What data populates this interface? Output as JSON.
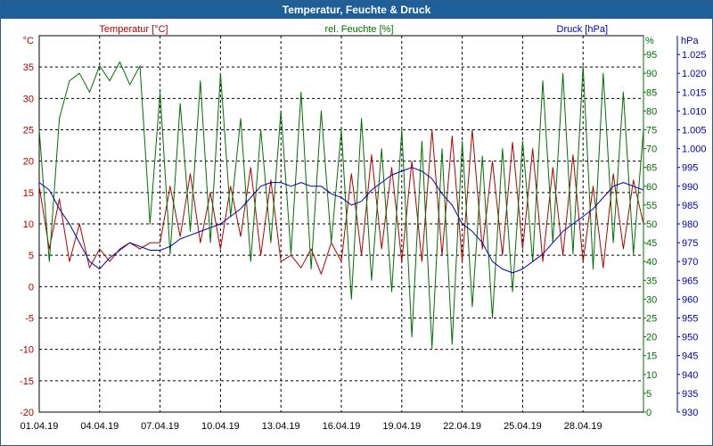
{
  "window": {
    "title": "Temperatur, Feuchte & Druck"
  },
  "colors": {
    "temperature": "#b00000",
    "humidity": "#007000",
    "pressure": "#0000b0",
    "grid": "#000000",
    "frame": "#1f5f99"
  },
  "chart_data": {
    "type": "line",
    "title": "Temperatur, Feuchte & Druck",
    "x_start": "2019-04-01",
    "x_end": "2019-05-01",
    "x_ticks": [
      "01.04.19",
      "04.04.19",
      "07.04.19",
      "10.04.19",
      "13.04.19",
      "16.04.19",
      "19.04.19",
      "22.04.19",
      "25.04.19",
      "28.04.19"
    ],
    "grid": true,
    "legend": "top",
    "axes": {
      "left": {
        "unit": "°C",
        "min": -20,
        "max": 40,
        "ticks": [
          -20,
          -15,
          -10,
          -5,
          0,
          5,
          10,
          15,
          20,
          25,
          30,
          35
        ]
      },
      "right1": {
        "unit": "%",
        "min": 0,
        "max": 100,
        "ticks": [
          0,
          5,
          10,
          15,
          20,
          25,
          30,
          35,
          40,
          45,
          50,
          55,
          60,
          65,
          70,
          75,
          80,
          85,
          90,
          95
        ]
      },
      "right2": {
        "unit": "hPa",
        "min": 930,
        "max": 1030,
        "ticks": [
          "930",
          "935",
          "940",
          "945",
          "950",
          "955",
          "960",
          "965",
          "970",
          "975",
          "980",
          "985",
          "990",
          "995",
          "1.000",
          "1.005",
          "1.010",
          "1.015",
          "1.020",
          "1.025"
        ]
      }
    },
    "series": [
      {
        "name": "Temperatur [°C]",
        "axis": "left",
        "x": [
          "2019-04-01",
          "2019-04-01T12",
          "2019-04-02",
          "2019-04-02T12",
          "2019-04-03",
          "2019-04-03T12",
          "2019-04-04",
          "2019-04-04T12",
          "2019-04-05",
          "2019-04-05T12",
          "2019-04-06",
          "2019-04-06T12",
          "2019-04-07",
          "2019-04-07T12",
          "2019-04-08",
          "2019-04-08T12",
          "2019-04-09",
          "2019-04-09T12",
          "2019-04-10",
          "2019-04-10T12",
          "2019-04-11",
          "2019-04-11T12",
          "2019-04-12",
          "2019-04-12T12",
          "2019-04-13",
          "2019-04-13T12",
          "2019-04-14",
          "2019-04-14T12",
          "2019-04-15",
          "2019-04-15T12",
          "2019-04-16",
          "2019-04-16T12",
          "2019-04-17",
          "2019-04-17T12",
          "2019-04-18",
          "2019-04-18T12",
          "2019-04-19",
          "2019-04-19T12",
          "2019-04-20",
          "2019-04-20T12",
          "2019-04-21",
          "2019-04-21T12",
          "2019-04-22",
          "2019-04-22T12",
          "2019-04-23",
          "2019-04-23T12",
          "2019-04-24",
          "2019-04-24T12",
          "2019-04-25",
          "2019-04-25T12",
          "2019-04-26",
          "2019-04-26T12",
          "2019-04-27",
          "2019-04-27T12",
          "2019-04-28",
          "2019-04-28T12",
          "2019-04-29",
          "2019-04-29T12",
          "2019-04-30",
          "2019-04-30T12",
          "2019-05-01"
        ],
        "values": [
          16,
          6,
          14,
          4,
          10,
          3,
          6,
          4,
          6,
          7,
          6,
          7,
          7,
          16,
          8,
          18,
          7,
          15,
          6,
          16,
          8,
          19,
          5,
          17,
          4,
          5,
          3,
          6,
          2,
          7,
          4,
          18,
          5,
          21,
          6,
          19,
          4,
          20,
          4,
          25,
          5,
          24,
          4,
          25,
          6,
          20,
          5,
          23,
          6,
          22,
          4,
          19,
          5,
          21,
          4,
          16,
          3,
          18,
          6,
          17,
          10
        ]
      },
      {
        "name": "rel. Feuchte [%]",
        "axis": "right1",
        "x": [
          "2019-04-01",
          "2019-04-01T12",
          "2019-04-02",
          "2019-04-02T12",
          "2019-04-03",
          "2019-04-03T12",
          "2019-04-04",
          "2019-04-04T12",
          "2019-04-05",
          "2019-04-05T12",
          "2019-04-06",
          "2019-04-06T12",
          "2019-04-07",
          "2019-04-07T12",
          "2019-04-08",
          "2019-04-08T12",
          "2019-04-09",
          "2019-04-09T12",
          "2019-04-10",
          "2019-04-10T12",
          "2019-04-11",
          "2019-04-11T12",
          "2019-04-12",
          "2019-04-12T12",
          "2019-04-13",
          "2019-04-13T12",
          "2019-04-14",
          "2019-04-14T12",
          "2019-04-15",
          "2019-04-15T12",
          "2019-04-16",
          "2019-04-16T12",
          "2019-04-17",
          "2019-04-17T12",
          "2019-04-18",
          "2019-04-18T12",
          "2019-04-19",
          "2019-04-19T12",
          "2019-04-20",
          "2019-04-20T12",
          "2019-04-21",
          "2019-04-21T12",
          "2019-04-22",
          "2019-04-22T12",
          "2019-04-23",
          "2019-04-23T12",
          "2019-04-24",
          "2019-04-24T12",
          "2019-04-25",
          "2019-04-25T12",
          "2019-04-26",
          "2019-04-26T12",
          "2019-04-27",
          "2019-04-27T12",
          "2019-04-28",
          "2019-04-28T12",
          "2019-04-29",
          "2019-04-29T12",
          "2019-04-30",
          "2019-04-30T12",
          "2019-05-01"
        ],
        "values": [
          75,
          40,
          78,
          88,
          90,
          85,
          92,
          88,
          93,
          87,
          92,
          50,
          85,
          42,
          82,
          48,
          88,
          45,
          90,
          52,
          78,
          40,
          75,
          45,
          80,
          42,
          85,
          38,
          80,
          45,
          75,
          30,
          78,
          35,
          70,
          32,
          75,
          20,
          72,
          17,
          70,
          18,
          72,
          28,
          68,
          25,
          70,
          32,
          72,
          40,
          88,
          45,
          90,
          42,
          92,
          38,
          90,
          45,
          85,
          42,
          75
        ]
      },
      {
        "name": "Druck [hPa]",
        "axis": "right2",
        "x": [
          "2019-04-01",
          "2019-04-01T12",
          "2019-04-02",
          "2019-04-02T12",
          "2019-04-03",
          "2019-04-03T12",
          "2019-04-04",
          "2019-04-04T12",
          "2019-04-05",
          "2019-04-05T12",
          "2019-04-06",
          "2019-04-06T12",
          "2019-04-07",
          "2019-04-07T12",
          "2019-04-08",
          "2019-04-08T12",
          "2019-04-09",
          "2019-04-09T12",
          "2019-04-10",
          "2019-04-10T12",
          "2019-04-11",
          "2019-04-11T12",
          "2019-04-12",
          "2019-04-12T12",
          "2019-04-13",
          "2019-04-13T12",
          "2019-04-14",
          "2019-04-14T12",
          "2019-04-15",
          "2019-04-15T12",
          "2019-04-16",
          "2019-04-16T12",
          "2019-04-17",
          "2019-04-17T12",
          "2019-04-18",
          "2019-04-18T12",
          "2019-04-19",
          "2019-04-19T12",
          "2019-04-20",
          "2019-04-20T12",
          "2019-04-21",
          "2019-04-21T12",
          "2019-04-22",
          "2019-04-22T12",
          "2019-04-23",
          "2019-04-23T12",
          "2019-04-24",
          "2019-04-24T12",
          "2019-04-25",
          "2019-04-25T12",
          "2019-04-26",
          "2019-04-26T12",
          "2019-04-27",
          "2019-04-27T12",
          "2019-04-28",
          "2019-04-28T12",
          "2019-04-29",
          "2019-04-29T12",
          "2019-04-30",
          "2019-04-30T12",
          "2019-05-01"
        ],
        "values": [
          991,
          989,
          984,
          980,
          975,
          970,
          968,
          971,
          973,
          975,
          974,
          973,
          973,
          974,
          976,
          977,
          978,
          979,
          980,
          982,
          984,
          987,
          990,
          991,
          991,
          990,
          991,
          990,
          990,
          988,
          987,
          985,
          986,
          989,
          991,
          993,
          994,
          995,
          994,
          992,
          988,
          985,
          980,
          978,
          975,
          970,
          968,
          967,
          968,
          970,
          972,
          975,
          978,
          980,
          982,
          984,
          987,
          990,
          991,
          990,
          989
        ]
      }
    ]
  }
}
